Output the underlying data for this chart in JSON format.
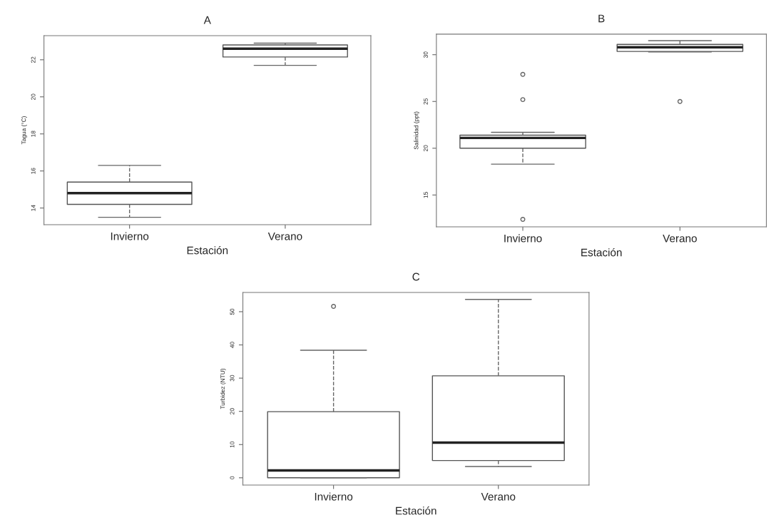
{
  "chart_data": [
    {
      "type": "box",
      "title": "A",
      "xlabel": "Estación",
      "ylabel": "Tagua (°C)",
      "categories": [
        "Invierno",
        "Verano"
      ],
      "ylim": [
        13.1,
        23.3
      ],
      "yticks": [
        14,
        16,
        18,
        20,
        22
      ],
      "boxes": [
        {
          "low": 13.5,
          "q1": 14.2,
          "median": 14.8,
          "q3": 15.4,
          "high": 16.3
        },
        {
          "low": 21.7,
          "q1": 22.15,
          "median": 22.6,
          "q3": 22.8,
          "high": 22.9
        }
      ]
    },
    {
      "type": "box",
      "title": "B",
      "xlabel": "Estación",
      "ylabel": "Salinidad (ppt)",
      "categories": [
        "Invierno",
        "Verano"
      ],
      "ylim": [
        11.6,
        32.2
      ],
      "yticks": [
        15,
        20,
        25,
        30
      ],
      "boxes": [
        {
          "low": 18.3,
          "q1": 20.0,
          "median": 21.1,
          "q3": 21.4,
          "high": 21.7,
          "outliers": [
            27.9,
            25.2,
            12.4
          ]
        },
        {
          "low": 30.3,
          "q1": 30.35,
          "median": 30.8,
          "q3": 31.1,
          "high": 31.5,
          "outliers": [
            25.0
          ]
        }
      ]
    },
    {
      "type": "box",
      "title": "C",
      "xlabel": "Estación",
      "ylabel": "Turbidez (NTU)",
      "categories": [
        "Invierno",
        "Verano"
      ],
      "ylim": [
        -2.2,
        55.8
      ],
      "yticks": [
        0,
        10,
        20,
        30,
        40,
        50
      ],
      "boxes": [
        {
          "low": 0,
          "q1": 0,
          "median": 2.2,
          "q3": 19.9,
          "high": 38.4,
          "outliers": [
            51.6
          ]
        },
        {
          "low": 3.4,
          "q1": 5.2,
          "median": 10.6,
          "q3": 30.7,
          "high": 53.7
        }
      ]
    }
  ]
}
